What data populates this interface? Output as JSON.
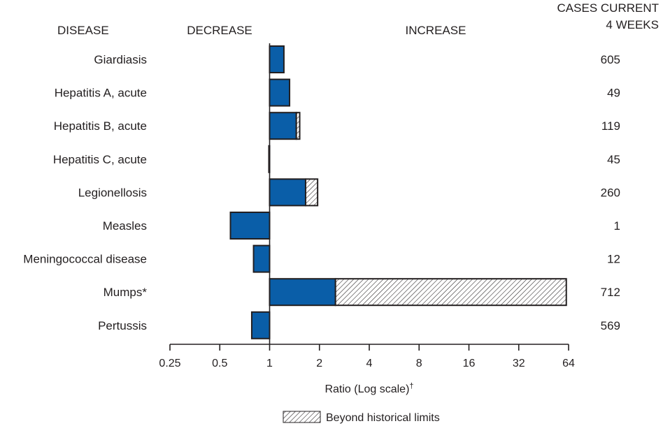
{
  "chart_data": {
    "type": "bar",
    "headers": {
      "disease": "DISEASE",
      "decrease": "DECREASE",
      "increase": "INCREASE",
      "cases_line1": "CASES CURRENT",
      "cases_line2": "4 WEEKS"
    },
    "categories": [
      "Giardiasis",
      "Hepatitis A, acute",
      "Hepatitis B, acute",
      "Hepatitis C, acute",
      "Legionellosis",
      "Measles",
      "Meningococcal disease",
      "Mumps*",
      "Pertussis"
    ],
    "ratios": [
      1.22,
      1.32,
      1.52,
      0.99,
      1.95,
      0.58,
      0.8,
      62,
      0.78
    ],
    "historical_limit_ratios": [
      null,
      null,
      1.45,
      null,
      1.65,
      null,
      null,
      2.5,
      null
    ],
    "cases": [
      "605",
      "49",
      "119",
      "45",
      "260",
      "1",
      "12",
      "712",
      "569"
    ],
    "xscale": "log2",
    "xlim": [
      0.25,
      64
    ],
    "xticks": [
      "0.25",
      "0.5",
      "1",
      "2",
      "4",
      "8",
      "16",
      "32",
      "64"
    ],
    "xlabel": "Ratio (Log scale)",
    "xlabel_sup": "†",
    "legend": {
      "label": "Beyond historical limits",
      "position": "bottom-center"
    },
    "colors": {
      "bar": "#0a5ea8",
      "outline": "#231f20",
      "hatch": "#231f20",
      "text": "#231f20"
    }
  }
}
